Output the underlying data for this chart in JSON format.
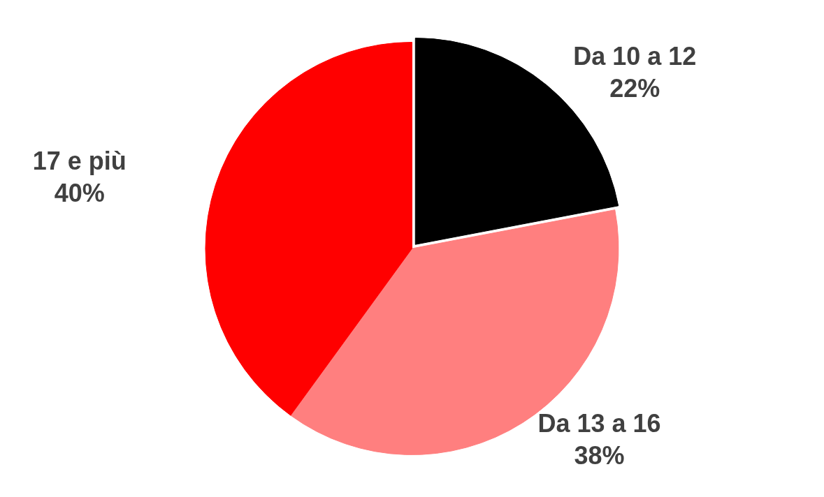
{
  "chart_data": {
    "type": "pie",
    "categories": [
      "Da 10 a 12",
      "Da 13 a 16",
      "17 e più"
    ],
    "values": [
      22,
      38,
      40
    ],
    "value_labels": [
      "22%",
      "38%",
      "40%"
    ],
    "colors": [
      "#000000",
      "#ff7f7f",
      "#ff0000"
    ],
    "legend": false
  }
}
